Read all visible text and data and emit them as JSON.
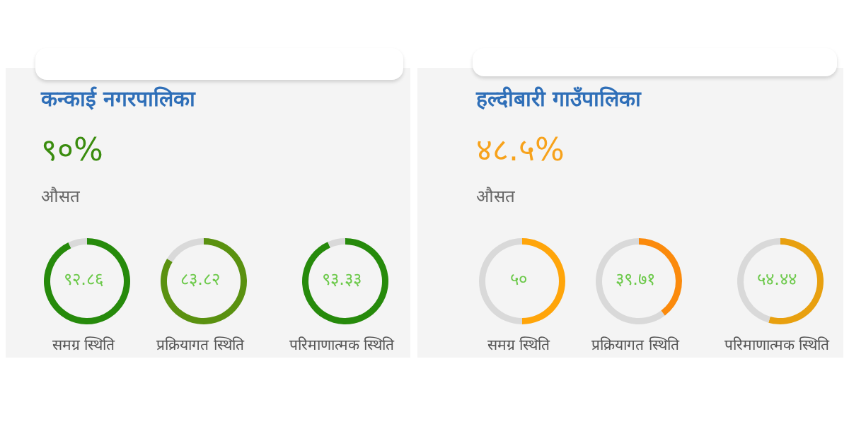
{
  "chart_data": [
    {
      "type": "other",
      "title": "कन्काई नगरपालिका",
      "annotations": [
        "९०%",
        "औसत"
      ]
    },
    {
      "type": "donut",
      "categories": [
        null,
        null
      ],
      "values": [
        92.86,
        7.14
      ],
      "colors": [
        "#268a0b",
        "#d9d9d9"
      ],
      "annotations": [
        "९२.८६"
      ],
      "xlabel": "समग्र स्थिति"
    },
    {
      "type": "donut",
      "categories": [
        null,
        null
      ],
      "values": [
        83.82,
        16.18
      ],
      "colors": [
        "#5a9110",
        "#d9d9d9"
      ],
      "annotations": [
        "८३.८२"
      ],
      "xlabel": "प्रक्रियागत स्थिति"
    },
    {
      "type": "donut",
      "categories": [
        null,
        null
      ],
      "values": [
        93.33,
        6.67
      ],
      "colors": [
        "#268a0b",
        "#d9d9d9"
      ],
      "annotations": [
        "९३.३३"
      ],
      "xlabel": "परिमाणात्मक स्थिति"
    },
    {
      "type": "other",
      "title": "हल्दीबारी गाउँपालिका",
      "annotations": [
        "४८.५%",
        "औसत"
      ]
    },
    {
      "type": "donut",
      "categories": [
        null,
        null
      ],
      "values": [
        50,
        50
      ],
      "colors": [
        "#ffa50a",
        "#d9d9d9"
      ],
      "annotations": [
        "५०"
      ],
      "xlabel": "समग्र स्थिति"
    },
    {
      "type": "donut",
      "categories": [
        null,
        null
      ],
      "values": [
        39.71,
        60.29
      ],
      "colors": [
        "#fb8a0c",
        "#d9d9d9"
      ],
      "annotations": [
        "३९.७१"
      ],
      "xlabel": "प्रक्रियागत स्थिति"
    },
    {
      "type": "donut",
      "categories": [
        null,
        null
      ],
      "values": [
        54.44,
        45.56
      ],
      "colors": [
        "#e8a00f",
        "#d9d9d9"
      ],
      "annotations": [
        "५४.४४"
      ],
      "xlabel": "परिमाणात्मक स्थिति"
    }
  ]
}
